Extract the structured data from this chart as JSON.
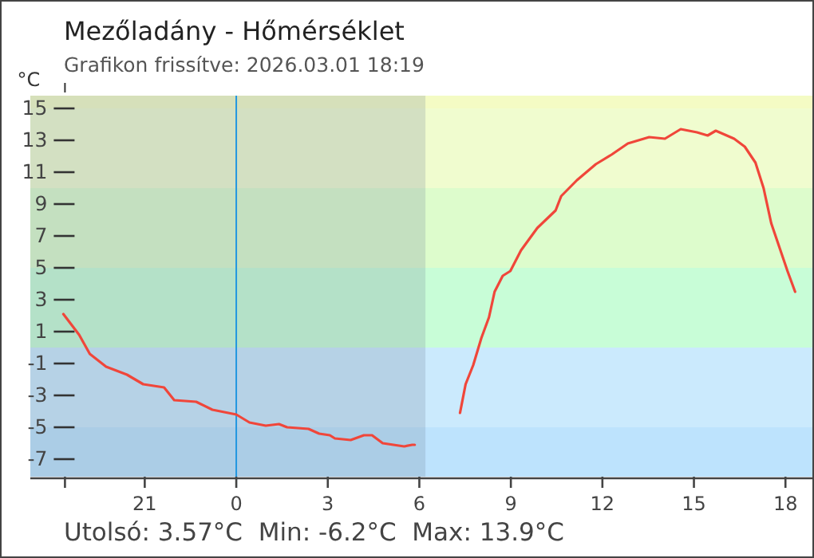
{
  "chart_data": {
    "type": "line",
    "title": "Mezőladány - Hőmérséklet",
    "subtitle": "Grafikon frissítve: 2026.03.01 18:19",
    "ylabel": "°C",
    "x": [
      "2026-02-28T18:20",
      "2026-02-28T18:51",
      "2026-02-28T19:12",
      "2026-02-28T19:44",
      "2026-02-28T20:25",
      "2026-02-28T20:57",
      "2026-02-28T21:38",
      "2026-02-28T21:58",
      "2026-02-28T22:41",
      "2026-02-28T23:13",
      "2026-03-01T00:00",
      "2026-03-01T00:26",
      "2026-03-01T00:58",
      "2026-03-01T01:24",
      "2026-03-01T01:40",
      "2026-03-01T02:22",
      "2026-03-01T02:43",
      "2026-03-01T03:04",
      "2026-03-01T03:14",
      "2026-03-01T03:45",
      "2026-03-01T04:11",
      "2026-03-01T04:27",
      "2026-03-01T04:48",
      "2026-03-01T05:30",
      "2026-03-01T05:46",
      "2026-03-01T05:51",
      "2026-03-01T06:36",
      "2026-03-01T07:20",
      "2026-03-01T07:31",
      "2026-03-01T07:46",
      "2026-03-01T08:02",
      "2026-03-01T08:17",
      "2026-03-01T08:28",
      "2026-03-01T08:44",
      "2026-03-01T08:59",
      "2026-03-01T09:20",
      "2026-03-01T09:52",
      "2026-03-01T10:28",
      "2026-03-01T10:39",
      "2026-03-01T11:10",
      "2026-03-01T11:47",
      "2026-03-01T12:18",
      "2026-03-01T12:50",
      "2026-03-01T13:32",
      "2026-03-01T14:03",
      "2026-03-01T14:34",
      "2026-03-01T15:06",
      "2026-03-01T15:27",
      "2026-03-01T15:43",
      "2026-03-01T16:19",
      "2026-03-01T16:40",
      "2026-03-01T17:01",
      "2026-03-01T17:17",
      "2026-03-01T17:32",
      "2026-03-01T17:48",
      "2026-03-01T18:04",
      "2026-03-01T18:19"
    ],
    "series": [
      {
        "color": "#f0463a",
        "values": [
          2.1,
          0.8,
          -0.4,
          -1.2,
          -1.7,
          -2.3,
          -2.5,
          -3.3,
          -3.4,
          -3.9,
          -4.2,
          -4.7,
          -4.9,
          -4.8,
          -5.0,
          -5.1,
          -5.4,
          -5.5,
          -5.7,
          -5.8,
          -5.5,
          -5.5,
          -6.0,
          -6.2,
          -6.1,
          -6.1,
          null,
          -4.1,
          -2.3,
          -1.1,
          0.6,
          1.9,
          3.5,
          4.5,
          4.8,
          6.1,
          7.5,
          8.6,
          9.5,
          10.5,
          11.5,
          12.1,
          12.8,
          13.2,
          13.1,
          13.7,
          13.5,
          13.3,
          13.6,
          13.1,
          12.6,
          11.6,
          10.0,
          7.8,
          6.3,
          4.8,
          3.5
        ]
      }
    ],
    "xlim": [
      "2026-02-28T17:15",
      "2026-03-01T18:53"
    ],
    "ylim": [
      -8.1,
      15.8
    ],
    "xticks": [
      {
        "value": "2026-02-28T21:00",
        "label": "21"
      },
      {
        "value": "2026-03-01T00:00",
        "label": "0"
      },
      {
        "value": "2026-03-01T03:00",
        "label": "3"
      },
      {
        "value": "2026-03-01T06:00",
        "label": "6"
      },
      {
        "value": "2026-03-01T09:00",
        "label": "9"
      },
      {
        "value": "2026-03-01T12:00",
        "label": "12"
      },
      {
        "value": "2026-03-01T15:00",
        "label": "15"
      },
      {
        "value": "2026-03-01T18:00",
        "label": "18"
      }
    ],
    "yticks": [
      -7,
      -5,
      -3,
      -1,
      1,
      3,
      5,
      7,
      9,
      11,
      13,
      15
    ],
    "bands": [
      {
        "axis": "y",
        "from": -8.1,
        "to": -5,
        "color": "#bde3fd"
      },
      {
        "axis": "y",
        "from": -5,
        "to": 0,
        "color": "#cbeafd"
      },
      {
        "axis": "y",
        "from": 0,
        "to": 5,
        "color": "#c8fdd7"
      },
      {
        "axis": "y",
        "from": 5,
        "to": 10,
        "color": "#ddfccc"
      },
      {
        "axis": "y",
        "from": 10,
        "to": 15,
        "color": "#f0fccf"
      },
      {
        "axis": "y",
        "from": 15,
        "to": 15.8,
        "color": "#f4fbc4"
      },
      {
        "axis": "x",
        "from": "2026-02-28T17:15",
        "to": "2026-03-01T06:12",
        "color": "#6f7f96"
      }
    ],
    "ref_lines": [
      {
        "axis": "x",
        "value": "2026-03-01T00:00",
        "color": "#2196e0"
      }
    ],
    "annotations": [
      "Utolsó: 3.57°C  Min: -6.2°C  Max: 13.9°C"
    ],
    "grid": false,
    "legend": false
  }
}
